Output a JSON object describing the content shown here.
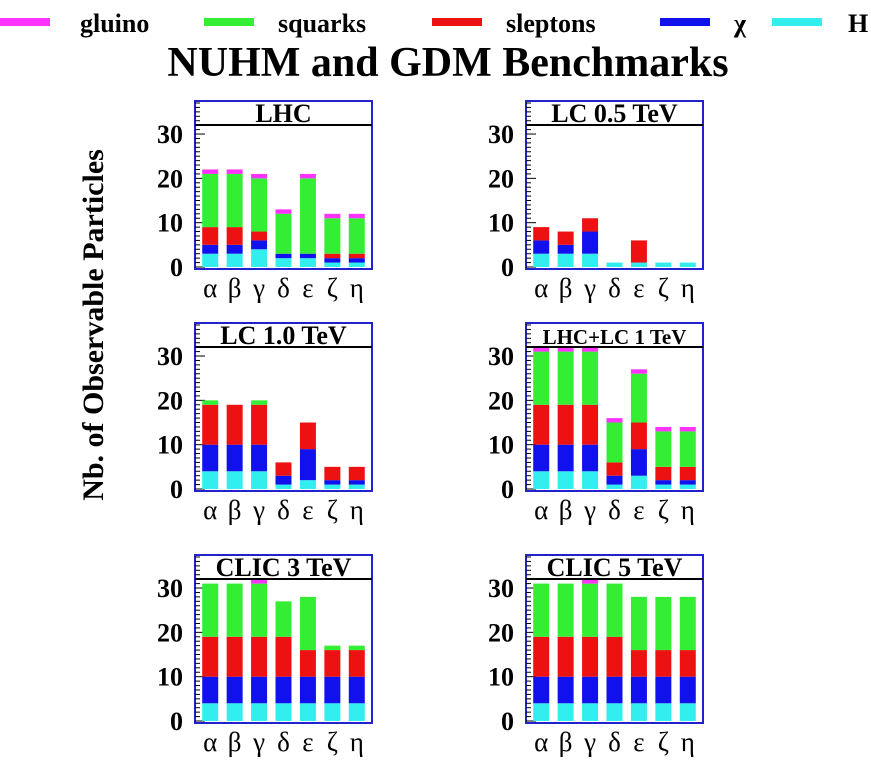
{
  "figure": {
    "title": "NUHM and GDM Benchmarks",
    "ylabel": "Nb. of Observable Particles"
  },
  "legend": {
    "placement": "top",
    "entries": [
      {
        "name": "gluino",
        "color": "#ff33ff"
      },
      {
        "name": "squarks",
        "color": "#33ee33"
      },
      {
        "name": "sleptons",
        "color": "#ee1111"
      },
      {
        "name": "χ",
        "color": "#1111ee"
      },
      {
        "name": "H",
        "color": "#33eeee"
      }
    ]
  },
  "chart_data": [
    {
      "type": "bar",
      "stacked": true,
      "title": "LHC",
      "categories": [
        "α",
        "β",
        "γ",
        "δ",
        "ε",
        "ζ",
        "η"
      ],
      "ylim": [
        0,
        37
      ],
      "yticks": [
        0,
        10,
        20,
        30
      ],
      "series": [
        {
          "name": "H",
          "values": [
            3,
            3,
            4,
            2,
            2,
            1,
            1
          ]
        },
        {
          "name": "χ",
          "values": [
            2,
            2,
            2,
            1,
            1,
            1,
            1
          ]
        },
        {
          "name": "sleptons",
          "values": [
            4,
            4,
            2,
            0,
            0,
            1,
            1
          ]
        },
        {
          "name": "squarks",
          "values": [
            12,
            12,
            12,
            9,
            17,
            8,
            8
          ]
        },
        {
          "name": "gluino",
          "values": [
            1,
            1,
            1,
            1,
            1,
            1,
            1
          ]
        }
      ]
    },
    {
      "type": "bar",
      "stacked": true,
      "title": "LC 0.5 TeV",
      "categories": [
        "α",
        "β",
        "γ",
        "δ",
        "ε",
        "ζ",
        "η"
      ],
      "ylim": [
        0,
        37
      ],
      "yticks": [
        0,
        10,
        20,
        30
      ],
      "series": [
        {
          "name": "H",
          "values": [
            3,
            3,
            3,
            1,
            1,
            1,
            1
          ]
        },
        {
          "name": "χ",
          "values": [
            3,
            2,
            5,
            0,
            0,
            0,
            0
          ]
        },
        {
          "name": "sleptons",
          "values": [
            3,
            3,
            3,
            0,
            5,
            0,
            0
          ]
        },
        {
          "name": "squarks",
          "values": [
            0,
            0,
            0,
            0,
            0,
            0,
            0
          ]
        },
        {
          "name": "gluino",
          "values": [
            0,
            0,
            0,
            0,
            0,
            0,
            0
          ]
        }
      ]
    },
    {
      "type": "bar",
      "stacked": true,
      "title": "LC 1.0 TeV",
      "categories": [
        "α",
        "β",
        "γ",
        "δ",
        "ε",
        "ζ",
        "η"
      ],
      "ylim": [
        0,
        37
      ],
      "yticks": [
        0,
        10,
        20,
        30
      ],
      "series": [
        {
          "name": "H",
          "values": [
            4,
            4,
            4,
            1,
            2,
            1,
            1
          ]
        },
        {
          "name": "χ",
          "values": [
            6,
            6,
            6,
            2,
            7,
            1,
            1
          ]
        },
        {
          "name": "sleptons",
          "values": [
            9,
            9,
            9,
            3,
            6,
            3,
            3
          ]
        },
        {
          "name": "squarks",
          "values": [
            1,
            0,
            1,
            0,
            0,
            0,
            0
          ]
        },
        {
          "name": "gluino",
          "values": [
            0,
            0,
            0,
            0,
            0,
            0,
            0
          ]
        }
      ]
    },
    {
      "type": "bar",
      "stacked": true,
      "title": "LHC+LC 1 TeV",
      "categories": [
        "α",
        "β",
        "γ",
        "δ",
        "ε",
        "ζ",
        "η"
      ],
      "ylim": [
        0,
        37
      ],
      "yticks": [
        0,
        10,
        20,
        30
      ],
      "series": [
        {
          "name": "H",
          "values": [
            4,
            4,
            4,
            1,
            3,
            1,
            1
          ]
        },
        {
          "name": "χ",
          "values": [
            6,
            6,
            6,
            2,
            6,
            1,
            1
          ]
        },
        {
          "name": "sleptons",
          "values": [
            9,
            9,
            9,
            3,
            6,
            3,
            3
          ]
        },
        {
          "name": "squarks",
          "values": [
            12,
            12,
            12,
            9,
            11,
            8,
            8
          ]
        },
        {
          "name": "gluino",
          "values": [
            1,
            1,
            1,
            1,
            1,
            1,
            1
          ]
        }
      ]
    },
    {
      "type": "bar",
      "stacked": true,
      "title": "CLIC 3 TeV",
      "categories": [
        "α",
        "β",
        "γ",
        "δ",
        "ε",
        "ζ",
        "η"
      ],
      "ylim": [
        0,
        37
      ],
      "yticks": [
        0,
        10,
        20,
        30
      ],
      "series": [
        {
          "name": "H",
          "values": [
            4,
            4,
            4,
            4,
            4,
            4,
            4
          ]
        },
        {
          "name": "χ",
          "values": [
            6,
            6,
            6,
            6,
            6,
            6,
            6
          ]
        },
        {
          "name": "sleptons",
          "values": [
            9,
            9,
            9,
            9,
            6,
            6,
            6
          ]
        },
        {
          "name": "squarks",
          "values": [
            12,
            12,
            12,
            8,
            12,
            1,
            1
          ]
        },
        {
          "name": "gluino",
          "values": [
            0,
            0,
            1,
            0,
            0,
            0,
            0
          ]
        }
      ]
    },
    {
      "type": "bar",
      "stacked": true,
      "title": "CLIC 5 TeV",
      "categories": [
        "α",
        "β",
        "γ",
        "δ",
        "ε",
        "ζ",
        "η"
      ],
      "ylim": [
        0,
        37
      ],
      "yticks": [
        0,
        10,
        20,
        30
      ],
      "series": [
        {
          "name": "H",
          "values": [
            4,
            4,
            4,
            4,
            4,
            4,
            4
          ]
        },
        {
          "name": "χ",
          "values": [
            6,
            6,
            6,
            6,
            6,
            6,
            6
          ]
        },
        {
          "name": "sleptons",
          "values": [
            9,
            9,
            9,
            9,
            6,
            6,
            6
          ]
        },
        {
          "name": "squarks",
          "values": [
            12,
            12,
            12,
            12,
            12,
            12,
            12
          ]
        },
        {
          "name": "gluino",
          "values": [
            0,
            0,
            1,
            0,
            0,
            0,
            0
          ]
        }
      ]
    }
  ]
}
